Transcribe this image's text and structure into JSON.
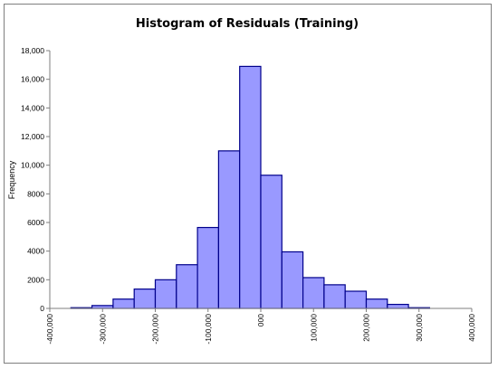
{
  "chart_data": {
    "type": "bar",
    "title": "Histogram of Residuals (Training)",
    "xlabel": "",
    "ylabel": "Frequency",
    "xlim": [
      -400000,
      400000
    ],
    "ylim": [
      0,
      18000
    ],
    "x_ticks": [
      "-400,000",
      "-300,000",
      "-200,000",
      "-100,000",
      "000",
      "100,000",
      "200,000",
      "300,000",
      "400,000"
    ],
    "y_ticks": [
      "0",
      "2000",
      "4000",
      "6000",
      "8000",
      "10,000",
      "12,000",
      "14,000",
      "16,000",
      "18,000"
    ],
    "bin_width": 40000,
    "bins": [
      {
        "start": -360000,
        "value": 50
      },
      {
        "start": -320000,
        "value": 200
      },
      {
        "start": -280000,
        "value": 650
      },
      {
        "start": -240000,
        "value": 1350
      },
      {
        "start": -200000,
        "value": 2000
      },
      {
        "start": -160000,
        "value": 3050
      },
      {
        "start": -120000,
        "value": 5650
      },
      {
        "start": -80000,
        "value": 11000
      },
      {
        "start": -40000,
        "value": 16900
      },
      {
        "start": 0,
        "value": 9300
      },
      {
        "start": 40000,
        "value": 3950
      },
      {
        "start": 80000,
        "value": 2150
      },
      {
        "start": 120000,
        "value": 1650
      },
      {
        "start": 160000,
        "value": 1200
      },
      {
        "start": 200000,
        "value": 650
      },
      {
        "start": 240000,
        "value": 280
      },
      {
        "start": 280000,
        "value": 50
      }
    ],
    "colors": {
      "bar_fill": "#9999ff",
      "bar_stroke": "#00008b",
      "axis": "#7f7f7f"
    },
    "grid": false,
    "legend": "none"
  }
}
